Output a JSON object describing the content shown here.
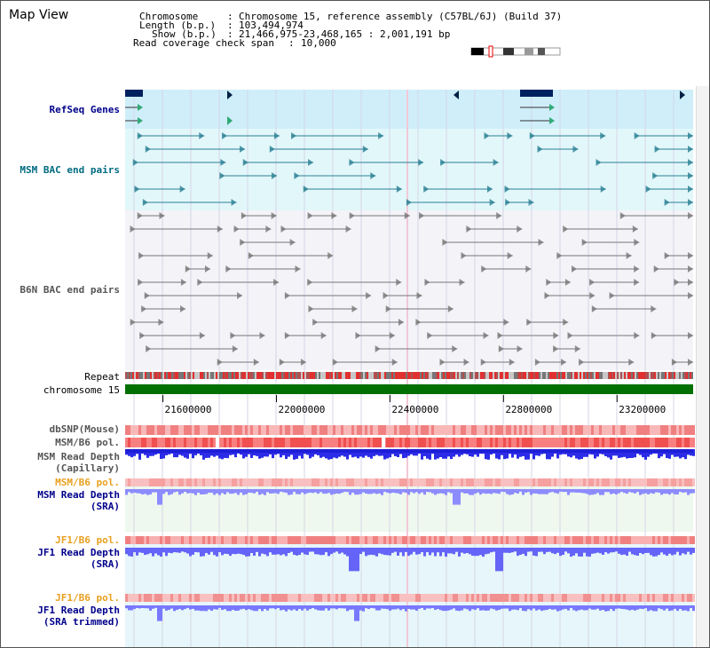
{
  "view_title": "Map View",
  "header": {
    "chromosome_key": "Chromosome",
    "chromosome_value": "Chromosome 15, reference assembly (C57BL/6J) (Build 37)",
    "length_key": "Length (b.p.)",
    "length_value": "103,494,974",
    "show_key": "Show (b.p.)",
    "show_value": "21,466,975-23,468,165 : 2,001,191 bp",
    "coverage_key": "Read coverage check span",
    "coverage_value": "10,000"
  },
  "tracks": {
    "refseq": "RefSeq Genes",
    "msm_bac": "MSM BAC end pairs",
    "b6n_bac": "B6N BAC end pairs",
    "repeat": "Repeat",
    "chromosome": "chromosome 15",
    "dbsnp": "dbSNP(Mouse)",
    "msm_b6_pol_1": "MSM/B6 pol.",
    "msm_depth_cap_1": "MSM Read Depth",
    "msm_depth_cap_2": "(Capillary)",
    "msm_b6_pol_2": "MSM/B6 pol.",
    "msm_depth_sra_1": "MSM Read Depth",
    "msm_depth_sra_2": "(SRA)",
    "jf1_b6_pol_1": "JF1/B6 pol.",
    "jf1_depth_sra_1": "JF1 Read Depth",
    "jf1_depth_sra_2": "(SRA)",
    "jf1_b6_pol_2": "JF1/B6 pol.",
    "jf1_depth_trim_1": "JF1 Read Depth",
    "jf1_depth_trim_2": "(SRA trimmed)"
  },
  "axis": {
    "ticks": [
      "21600000",
      "22000000",
      "22400000",
      "22800000",
      "23200000"
    ],
    "tick_values": [
      21600000,
      22000000,
      22400000,
      22800000,
      23200000
    ],
    "range": [
      21466975,
      23468165
    ]
  },
  "colors": {
    "refseq_bg": "#cfeefa",
    "msm_bg": "#e2f7fa",
    "b6n_bg": "#f3f3f8",
    "chromosome_bar": "#007000",
    "depth_blue": "#2a2af0",
    "depth_light": "#8080ff",
    "pol_red": "#f07070",
    "pol_light": "#f8b0b0"
  }
}
